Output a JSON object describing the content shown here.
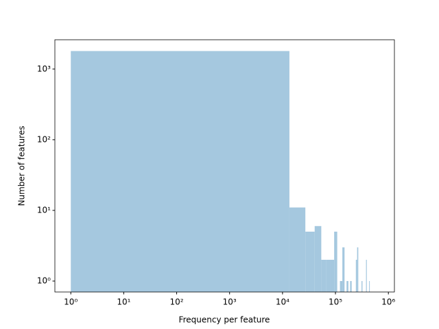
{
  "chart_data": {
    "type": "histogram",
    "xlabel": "Frequency per feature",
    "ylabel": "Number of features",
    "bins": [
      1,
      13501,
      27001,
      40501,
      54001,
      67501,
      81001,
      94501,
      108001,
      121501,
      135001,
      148501,
      162001,
      175501,
      189001,
      202501,
      216001,
      229501,
      243001,
      256501,
      270001,
      283501,
      297001,
      310501,
      324001,
      337501,
      351001,
      364501,
      378001,
      391501,
      405001,
      418501,
      432001,
      445501
    ],
    "values": [
      1800,
      11,
      5,
      6,
      2,
      2,
      2,
      5,
      0,
      1,
      3,
      0,
      1,
      0,
      1,
      0,
      0,
      0,
      2,
      3,
      0,
      0,
      0,
      1,
      0,
      0,
      0,
      0,
      2,
      0,
      0,
      0,
      1
    ],
    "color": "#a5c8df",
    "xscale": "log",
    "yscale": "log",
    "xlim": [
      0.5,
      1300000
    ],
    "ylim": [
      0.7,
      2600
    ],
    "xticks": [
      {
        "value": 1,
        "label": "10⁰"
      },
      {
        "value": 10,
        "label": "10¹"
      },
      {
        "value": 100,
        "label": "10²"
      },
      {
        "value": 1000,
        "label": "10³"
      },
      {
        "value": 10000,
        "label": "10⁴"
      },
      {
        "value": 100000,
        "label": "10⁵"
      },
      {
        "value": 1000000,
        "label": "10⁶"
      }
    ],
    "yticks": [
      {
        "value": 1,
        "label": "10⁰"
      },
      {
        "value": 10,
        "label": "10¹"
      },
      {
        "value": 100,
        "label": "10²"
      },
      {
        "value": 1000,
        "label": "10³"
      }
    ]
  }
}
